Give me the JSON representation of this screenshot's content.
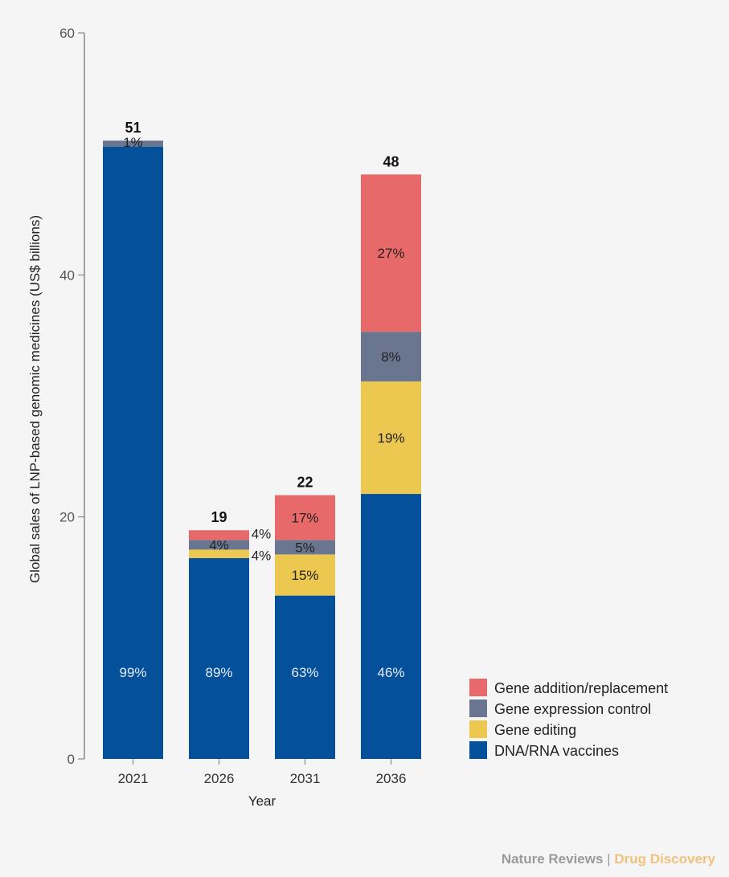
{
  "chart_data": {
    "type": "bar",
    "stacked": true,
    "xlabel": "Year",
    "ylabel": "Global sales of LNP-based genomic medicines (US$ billions)",
    "ylim": [
      0,
      60
    ],
    "yticks": [
      0,
      20,
      40,
      60
    ],
    "grid": false,
    "legend_position": "bottom-right",
    "categories": [
      "2021",
      "2026",
      "2031",
      "2036"
    ],
    "totals": [
      "51",
      "19",
      "22",
      "48"
    ],
    "series": [
      {
        "name": "DNA/RNA vaccines",
        "color": "#05509a",
        "values": [
          50.6,
          16.6,
          13.5,
          21.9
        ],
        "labels": [
          "99%",
          "89%",
          "63%",
          "46%"
        ]
      },
      {
        "name": "Gene editing",
        "color": "#ecc850",
        "values": [
          0,
          0.7,
          3.4,
          9.3
        ],
        "labels": [
          "",
          "4%",
          "15%",
          "19%"
        ]
      },
      {
        "name": "Gene expression control",
        "color": "#6a7690",
        "values": [
          0.5,
          0.8,
          1.2,
          4.1
        ],
        "labels": [
          "1%",
          "4%",
          "5%",
          "8%"
        ]
      },
      {
        "name": "Gene addition/replacement",
        "color": "#e8696a",
        "values": [
          0,
          0.8,
          3.7,
          13.0
        ],
        "labels": [
          "",
          "4%",
          "17%",
          "27%"
        ]
      }
    ]
  },
  "footer": {
    "publisher": "Nature Reviews",
    "separator": "|",
    "journal": "Drug Discovery"
  }
}
